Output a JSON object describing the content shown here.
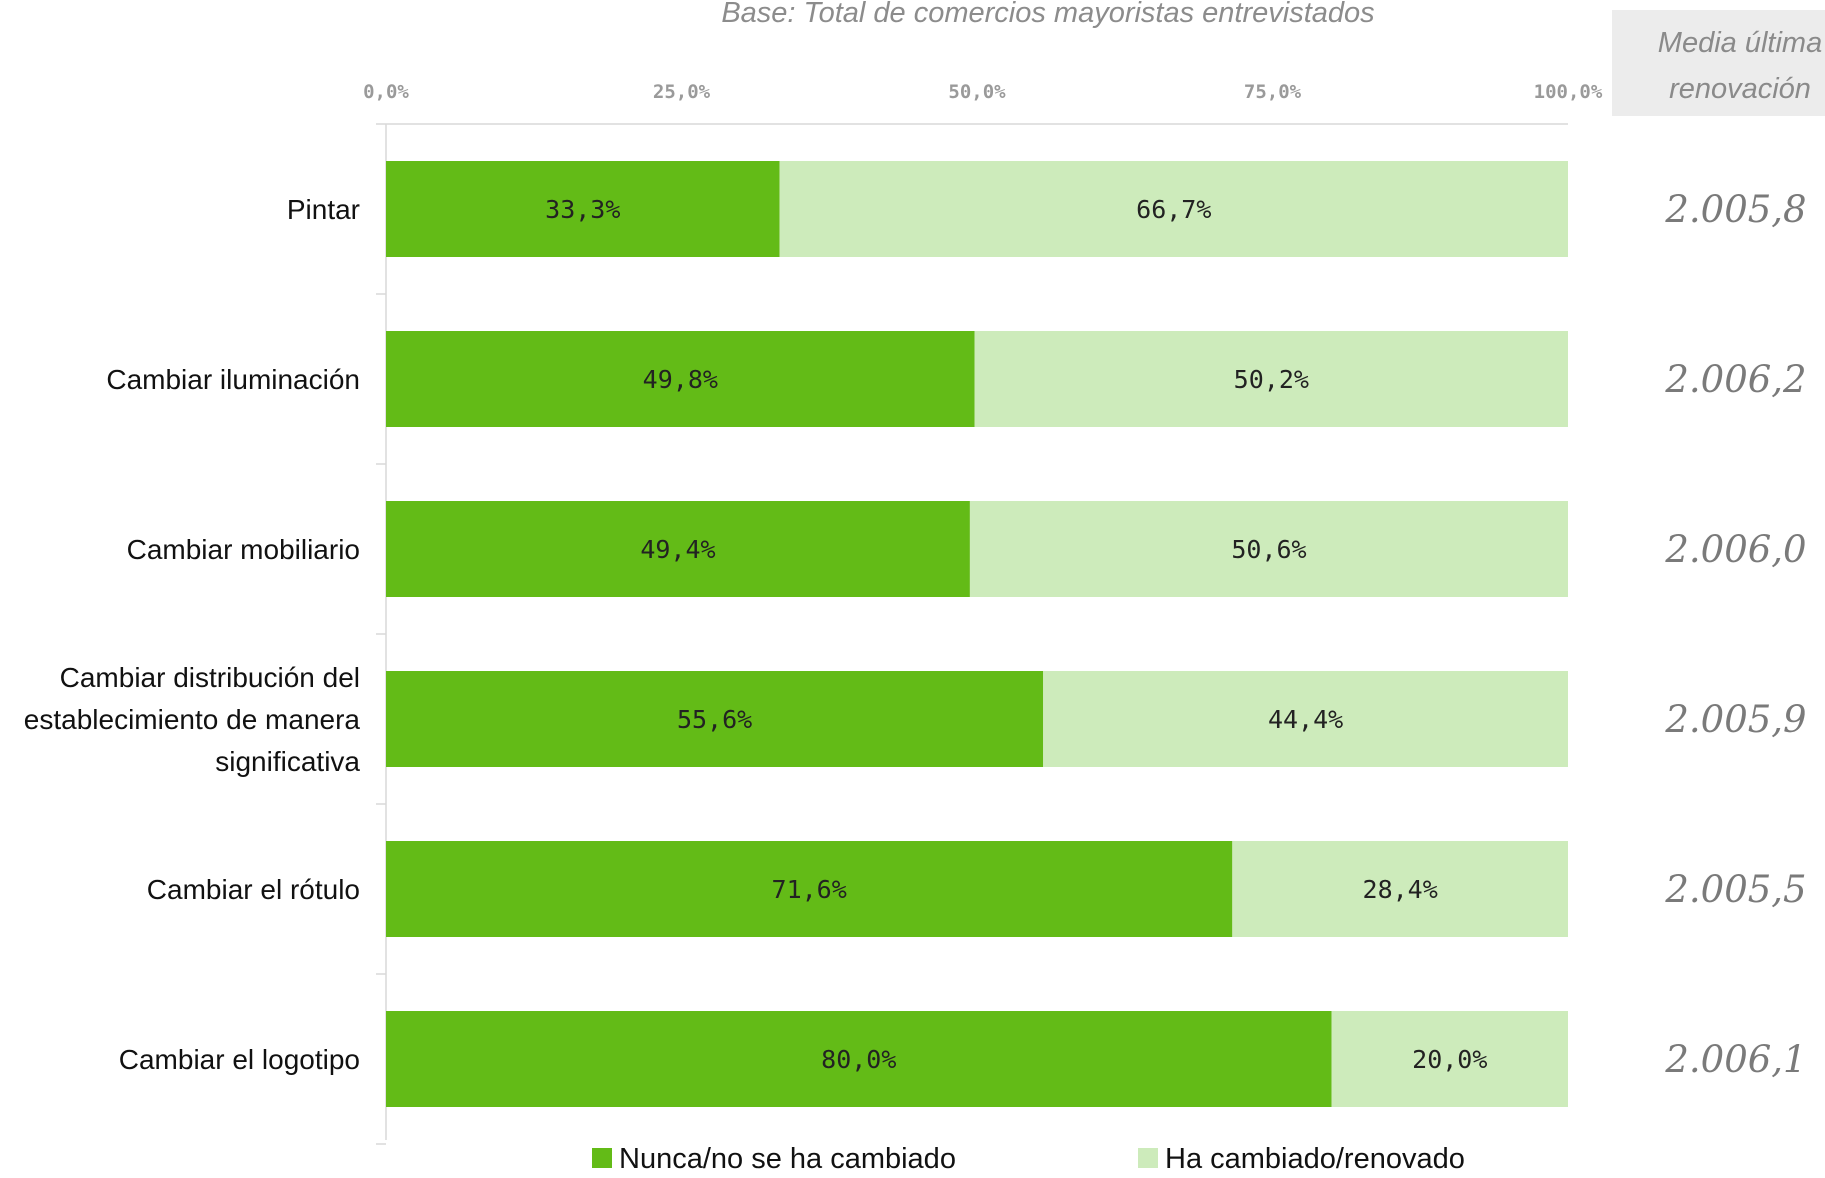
{
  "chart_data": {
    "type": "bar",
    "orientation": "horizontal",
    "stacked": true,
    "subtitle": "Base: Total de comercios mayoristas entrevistados",
    "xlim": [
      0,
      100
    ],
    "x_ticks": [
      "0,0%",
      "25,0%",
      "50,0%",
      "75,0%",
      "100,0%"
    ],
    "categories": [
      [
        "Pintar"
      ],
      [
        "Cambiar iluminación"
      ],
      [
        "Cambiar mobiliario"
      ],
      [
        "Cambiar distribución del",
        "establecimiento de manera",
        "significativa"
      ],
      [
        "Cambiar el rótulo"
      ],
      [
        "Cambiar el logotipo"
      ]
    ],
    "series": [
      {
        "name": "Nunca/no se ha cambiado",
        "color": "#63bb17",
        "values": [
          33.3,
          49.8,
          49.4,
          55.6,
          71.6,
          80.0
        ],
        "labels": [
          "33,3%",
          "49,8%",
          "49,4%",
          "55,6%",
          "71,6%",
          "80,0%"
        ]
      },
      {
        "name": "Ha cambiado/renovado",
        "color": "#cdebbb",
        "values": [
          66.7,
          50.2,
          50.6,
          44.4,
          28.4,
          20.0
        ],
        "labels": [
          "66,7%",
          "50,2%",
          "50,6%",
          "44,4%",
          "28,4%",
          "20,0%"
        ]
      }
    ],
    "side_column": {
      "header": [
        "Media última",
        "renovación"
      ],
      "header_bg": "#ececec",
      "values": [
        "2.005,8",
        "2.006,2",
        "2.006,0",
        "2.005,9",
        "2.005,5",
        "2.006,1"
      ]
    },
    "legend_position": "bottom",
    "grid": false
  }
}
